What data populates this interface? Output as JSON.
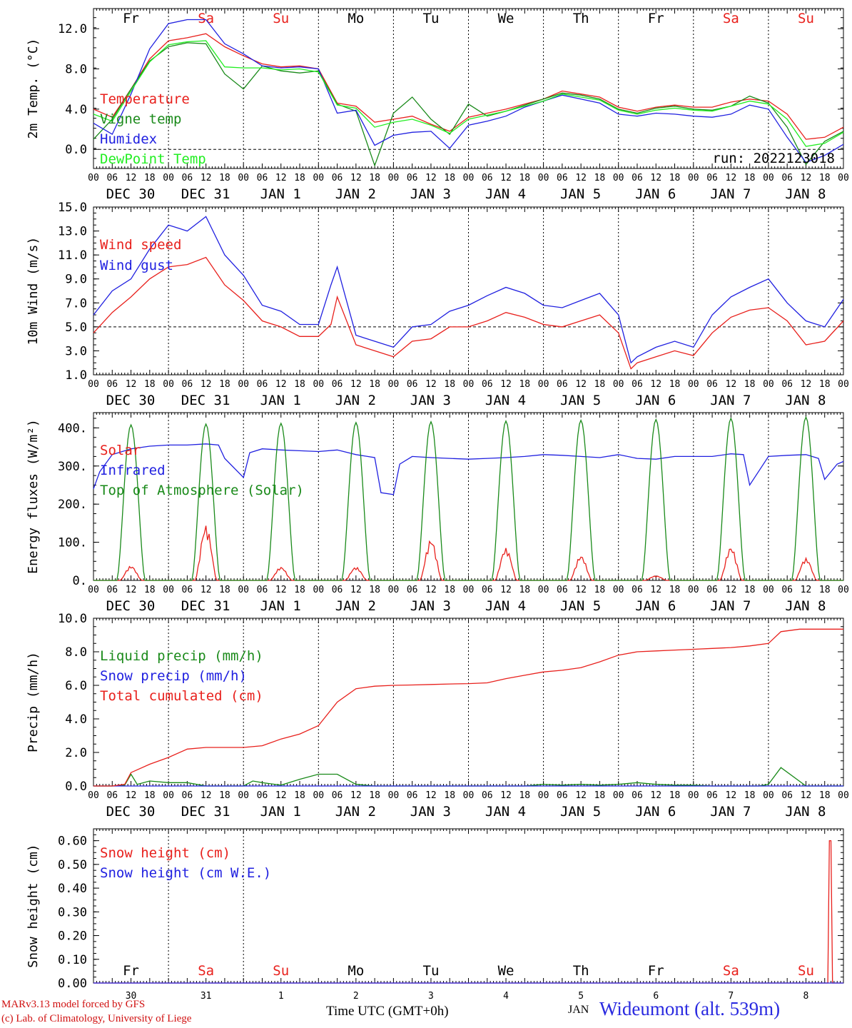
{
  "footer": {
    "model_line": "MARv3.13 model forced by GFS",
    "credit_line": "(c) Lab. of Climatology, University of Liege",
    "xaxis_title": "Time UTC (GMT+0h)",
    "month_label": "JAN",
    "station": "Wideumont (alt. 539m)"
  },
  "colors": {
    "red": "#e8201c",
    "green": "#1a8a1a",
    "blue": "#2020e0",
    "lightgreen": "#22ee22",
    "station": "#2a2ae0",
    "footer_red": "#d01010"
  },
  "axis": {
    "days": [
      "Fr",
      "Sa",
      "Su",
      "Mo",
      "Tu",
      "We",
      "Th",
      "Fr",
      "Sa",
      "Su"
    ],
    "weekend_days": [
      "Sa",
      "Su"
    ],
    "hour_ticks": [
      "00",
      "06",
      "12",
      "18"
    ],
    "date_labels": [
      "DEC 30",
      "DEC 31",
      "JAN  1",
      "JAN  2",
      "JAN  3",
      "JAN  4",
      "JAN  5",
      "JAN  6",
      "JAN  7",
      "JAN  8"
    ],
    "day_numbers": [
      "30",
      "31",
      "1",
      "2",
      "3",
      "4",
      "5",
      "6",
      "7",
      "8"
    ]
  },
  "chart_data": [
    {
      "type": "line",
      "ylabel": "2m Temp. (°C)",
      "ylim": [
        -1.9,
        14.0
      ],
      "yticks": [
        "0.0",
        "4.0",
        "8.0",
        "12.0"
      ],
      "ytick_values": [
        0,
        4,
        8,
        12
      ],
      "hline": 0,
      "annotation": "run: 2022123018",
      "legend": [
        "Temperature",
        "Vigne temp",
        "Humidex",
        "DewPoint Temp"
      ],
      "series": [
        {
          "name": "Temperature",
          "color": "red",
          "x": [
            0,
            6,
            12,
            18,
            24,
            30,
            36,
            42,
            48,
            54,
            60,
            66,
            72,
            78,
            84,
            90,
            96,
            102,
            108,
            114,
            120,
            126,
            132,
            138,
            144,
            150,
            156,
            162,
            168,
            174,
            180,
            186,
            192,
            198,
            204,
            210,
            216,
            222,
            228,
            234,
            240
          ],
          "y": [
            4.0,
            3.2,
            6.0,
            9.0,
            10.8,
            11.1,
            11.5,
            10.2,
            9.3,
            8.5,
            8.2,
            8.3,
            8.0,
            4.6,
            4.3,
            2.7,
            3.0,
            3.3,
            2.5,
            1.8,
            3.2,
            3.6,
            4.0,
            4.5,
            5.0,
            5.8,
            5.5,
            5.2,
            4.2,
            3.8,
            4.2,
            4.4,
            4.2,
            4.2,
            4.7,
            5.0,
            4.8,
            3.5,
            1.0,
            1.2,
            2.2
          ]
        },
        {
          "name": "Vigne temp",
          "color": "green",
          "x": [
            0,
            6,
            12,
            18,
            24,
            30,
            36,
            42,
            48,
            54,
            60,
            66,
            72,
            78,
            84,
            90,
            96,
            102,
            108,
            114,
            120,
            126,
            132,
            138,
            144,
            150,
            156,
            162,
            168,
            174,
            180,
            186,
            192,
            198,
            204,
            210,
            216,
            222,
            228,
            234,
            240
          ],
          "y": [
            1.0,
            3.0,
            6.0,
            8.8,
            10.2,
            10.6,
            10.5,
            7.5,
            6.0,
            8.3,
            7.8,
            7.6,
            7.8,
            4.5,
            3.8,
            -1.6,
            3.6,
            5.2,
            3.0,
            1.5,
            4.5,
            3.3,
            3.8,
            4.4,
            5.0,
            5.6,
            5.4,
            5.0,
            4.0,
            3.6,
            4.1,
            4.3,
            4.0,
            3.9,
            4.3,
            5.3,
            4.6,
            2.2,
            -1.5,
            0.8,
            1.8
          ]
        },
        {
          "name": "Humidex",
          "color": "blue",
          "x": [
            0,
            6,
            12,
            18,
            24,
            30,
            36,
            42,
            48,
            54,
            60,
            66,
            72,
            78,
            84,
            90,
            96,
            102,
            108,
            114,
            120,
            126,
            132,
            138,
            144,
            150,
            156,
            162,
            168,
            174,
            180,
            186,
            192,
            198,
            204,
            210,
            216,
            222,
            228,
            234,
            240
          ],
          "y": [
            2.6,
            1.5,
            5.5,
            10.0,
            12.5,
            12.9,
            12.9,
            10.5,
            9.5,
            8.3,
            8.1,
            8.2,
            8.0,
            3.6,
            3.9,
            0.4,
            1.4,
            1.7,
            1.8,
            0.1,
            2.4,
            2.8,
            3.3,
            4.2,
            4.8,
            5.4,
            5.0,
            4.6,
            3.5,
            3.3,
            3.6,
            3.5,
            3.3,
            3.2,
            3.5,
            4.4,
            4.0,
            1.2,
            -1.3,
            -0.6,
            0.5
          ]
        },
        {
          "name": "DewPoint Temp",
          "color": "lightgreen",
          "x": [
            0,
            6,
            12,
            18,
            24,
            30,
            36,
            42,
            48,
            54,
            60,
            66,
            72,
            78,
            84,
            90,
            96,
            102,
            108,
            114,
            120,
            126,
            132,
            138,
            144,
            150,
            156,
            162,
            168,
            174,
            180,
            186,
            192,
            198,
            204,
            210,
            216,
            222,
            228,
            234,
            240
          ],
          "y": [
            3.5,
            2.8,
            5.8,
            8.7,
            10.4,
            10.7,
            10.8,
            8.2,
            8.1,
            8.1,
            7.9,
            8.0,
            7.7,
            4.4,
            4.1,
            2.2,
            2.7,
            3.0,
            2.4,
            1.6,
            3.0,
            3.4,
            3.8,
            4.3,
            4.8,
            5.5,
            5.2,
            4.9,
            3.9,
            3.5,
            3.9,
            4.1,
            3.9,
            3.8,
            4.3,
            4.8,
            4.5,
            3.0,
            0.3,
            0.6,
            1.7
          ]
        }
      ]
    },
    {
      "type": "line",
      "ylabel": "10m Wind (m/s)",
      "ylim": [
        1.0,
        15.0
      ],
      "yticks": [
        "1.0",
        "3.0",
        "5.0",
        "7.0",
        "9.0",
        "11.0",
        "13.0",
        "15.0"
      ],
      "ytick_values": [
        1,
        3,
        5,
        7,
        9,
        11,
        13,
        15
      ],
      "hline": 5,
      "legend": [
        "Wind speed",
        "Wind gust"
      ],
      "series": [
        {
          "name": "Wind speed",
          "color": "red",
          "x": [
            0,
            6,
            12,
            18,
            24,
            30,
            36,
            42,
            48,
            54,
            60,
            66,
            72,
            76,
            78,
            84,
            90,
            96,
            102,
            108,
            114,
            120,
            126,
            132,
            138,
            144,
            150,
            156,
            162,
            168,
            172,
            174,
            180,
            186,
            192,
            198,
            204,
            210,
            216,
            222,
            228,
            234,
            240
          ],
          "y": [
            4.5,
            6.2,
            7.5,
            9.0,
            10.0,
            10.2,
            10.8,
            8.5,
            7.2,
            5.5,
            5.0,
            4.2,
            4.2,
            5.2,
            7.5,
            3.5,
            3.0,
            2.5,
            3.8,
            4.0,
            5.0,
            5.0,
            5.5,
            6.2,
            5.8,
            5.2,
            5.0,
            5.5,
            6.0,
            4.5,
            1.5,
            2.0,
            2.5,
            3.0,
            2.6,
            4.5,
            5.8,
            6.4,
            6.6,
            5.5,
            3.5,
            3.8,
            5.5
          ]
        },
        {
          "name": "Wind gust",
          "color": "blue",
          "x": [
            0,
            6,
            12,
            18,
            24,
            30,
            36,
            42,
            48,
            54,
            60,
            66,
            72,
            76,
            78,
            84,
            90,
            96,
            102,
            108,
            114,
            120,
            126,
            132,
            138,
            144,
            150,
            156,
            162,
            168,
            172,
            174,
            180,
            186,
            192,
            198,
            204,
            210,
            216,
            222,
            228,
            234,
            240
          ],
          "y": [
            6.0,
            8.0,
            9.0,
            11.5,
            13.5,
            13.0,
            14.2,
            11.0,
            9.3,
            6.8,
            6.3,
            5.2,
            5.2,
            8.5,
            10.0,
            4.3,
            3.8,
            3.3,
            5.0,
            5.2,
            6.3,
            6.8,
            7.6,
            8.3,
            7.8,
            6.8,
            6.6,
            7.2,
            7.8,
            6.0,
            2.0,
            2.5,
            3.3,
            3.8,
            3.3,
            6.0,
            7.5,
            8.3,
            9.0,
            7.0,
            5.5,
            5.0,
            7.3
          ]
        }
      ]
    },
    {
      "type": "line",
      "ylabel": "Energy fluxes (W/m²)",
      "ylim": [
        0,
        440
      ],
      "yticks": [
        "0.",
        "100.",
        "200.",
        "300.",
        "400."
      ],
      "ytick_values": [
        0,
        100,
        200,
        300,
        400
      ],
      "legend": [
        "Solar",
        "Infrared",
        "Top of Atmosphere (Solar)"
      ],
      "series": [
        {
          "name": "Solar",
          "color": "red",
          "daily_peak": [
            38,
            145,
            35,
            35,
            108,
            85,
            65,
            12,
            88,
            58
          ]
        },
        {
          "name": "Infrared",
          "color": "blue",
          "x": [
            0,
            2,
            6,
            12,
            18,
            24,
            30,
            36,
            40,
            42,
            48,
            50,
            54,
            60,
            66,
            72,
            78,
            84,
            90,
            92,
            96,
            98,
            102,
            108,
            114,
            120,
            126,
            132,
            138,
            144,
            150,
            156,
            162,
            168,
            174,
            180,
            186,
            192,
            198,
            204,
            208,
            210,
            214,
            216,
            222,
            228,
            232,
            234,
            238,
            240
          ],
          "y": [
            240,
            285,
            330,
            345,
            352,
            355,
            355,
            358,
            355,
            320,
            270,
            335,
            345,
            342,
            340,
            338,
            342,
            330,
            322,
            230,
            225,
            305,
            325,
            322,
            320,
            318,
            320,
            322,
            325,
            330,
            328,
            325,
            322,
            330,
            320,
            318,
            325,
            325,
            325,
            332,
            330,
            250,
            300,
            325,
            328,
            330,
            320,
            265,
            305,
            312
          ]
        },
        {
          "name": "Top of Atmosphere (Solar)",
          "color": "green",
          "daily_peak": [
            408,
            410,
            412,
            414,
            416,
            418,
            420,
            422,
            425,
            428
          ]
        }
      ]
    },
    {
      "type": "line",
      "ylabel": "Precip (mm/h)",
      "ylim": [
        0,
        10
      ],
      "yticks": [
        "0.0",
        "2.0",
        "4.0",
        "6.0",
        "8.0",
        "10.0"
      ],
      "ytick_values": [
        0,
        2,
        4,
        6,
        8,
        10
      ],
      "legend": [
        "Liquid precip (mm/h)",
        "Snow precip (mm/h)",
        "Total cumulated (cm)"
      ],
      "series": [
        {
          "name": "Liquid precip (mm/h)",
          "color": "green",
          "x": [
            0,
            6,
            10,
            12,
            14,
            18,
            24,
            30,
            36,
            42,
            48,
            51,
            54,
            60,
            66,
            72,
            78,
            84,
            90,
            96,
            102,
            108,
            114,
            120,
            126,
            132,
            138,
            144,
            150,
            156,
            162,
            168,
            174,
            180,
            186,
            192,
            198,
            204,
            210,
            213,
            216,
            220,
            228,
            234,
            240
          ],
          "y": [
            0,
            0,
            0.05,
            0.7,
            0.1,
            0.3,
            0.2,
            0.2,
            0,
            0,
            0,
            0.3,
            0.2,
            0.05,
            0.4,
            0.7,
            0.7,
            0.1,
            0,
            0,
            0,
            0,
            0,
            0,
            0,
            0,
            0,
            0.1,
            0.05,
            0.1,
            0.05,
            0.1,
            0.2,
            0.1,
            0.05,
            0.05,
            0,
            0,
            0,
            0,
            0.1,
            1.1,
            0,
            0,
            0
          ]
        },
        {
          "name": "Snow precip (mm/h)",
          "color": "blue",
          "x": [
            0,
            240
          ],
          "y": [
            0,
            0
          ]
        },
        {
          "name": "Total cumulated (cm)",
          "color": "red",
          "x": [
            0,
            6,
            10,
            12,
            18,
            24,
            30,
            36,
            42,
            48,
            54,
            60,
            66,
            72,
            78,
            84,
            90,
            96,
            102,
            108,
            114,
            120,
            126,
            132,
            138,
            144,
            150,
            156,
            162,
            168,
            174,
            180,
            186,
            192,
            198,
            204,
            210,
            216,
            220,
            226,
            234,
            240
          ],
          "y": [
            0,
            0,
            0.1,
            0.8,
            1.3,
            1.7,
            2.2,
            2.3,
            2.3,
            2.3,
            2.4,
            2.8,
            3.1,
            3.6,
            5.0,
            5.8,
            5.95,
            6.0,
            6.02,
            6.05,
            6.08,
            6.1,
            6.15,
            6.4,
            6.6,
            6.8,
            6.9,
            7.05,
            7.4,
            7.8,
            8.0,
            8.05,
            8.1,
            8.15,
            8.2,
            8.25,
            8.35,
            8.5,
            9.2,
            9.35,
            9.35,
            9.35
          ]
        }
      ]
    },
    {
      "type": "line",
      "ylabel": "Snow height (cm)",
      "ylim": [
        0,
        0.65
      ],
      "yticks": [
        "0.00",
        "0.10",
        "0.20",
        "0.30",
        "0.40",
        "0.50",
        "0.60"
      ],
      "ytick_values": [
        0,
        0.1,
        0.2,
        0.3,
        0.4,
        0.5,
        0.6
      ],
      "legend": [
        "Snow height (cm)",
        "Snow height (cm W.E.)"
      ],
      "series": [
        {
          "name": "Snow height (cm)",
          "color": "red",
          "x": [
            0,
            235,
            235.5,
            236,
            236.5,
            240
          ],
          "y": [
            0,
            0,
            0.6,
            0.6,
            0,
            0
          ]
        },
        {
          "name": "Snow height (cm W.E.)",
          "color": "blue",
          "x": [
            0,
            240
          ],
          "y": [
            0,
            0
          ]
        }
      ]
    }
  ]
}
